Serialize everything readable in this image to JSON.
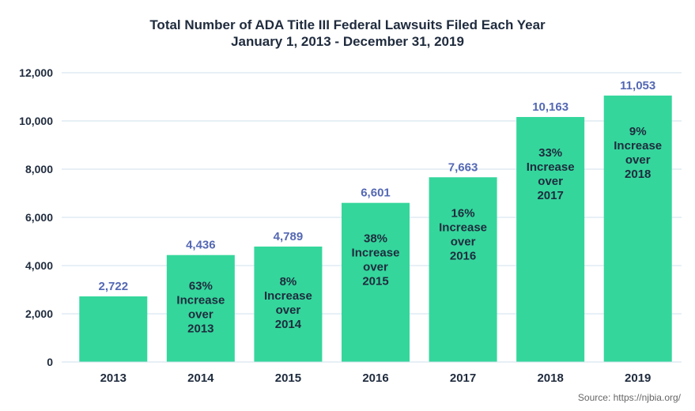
{
  "chart_data": {
    "type": "bar",
    "title_lines": [
      "Total Number of ADA Title III Federal Lawsuits Filed Each Year",
      "January 1, 2013 - December 31, 2019"
    ],
    "categories": [
      "2013",
      "2014",
      "2015",
      "2016",
      "2017",
      "2018",
      "2019"
    ],
    "values": [
      2722,
      4436,
      4789,
      6601,
      7663,
      10163,
      11053
    ],
    "value_labels": [
      "2,722",
      "4,436",
      "4,789",
      "6,601",
      "7,663",
      "10,163",
      "11,053"
    ],
    "bar_annotations": [
      [],
      [
        "63%",
        "Increase",
        "over",
        "2013"
      ],
      [
        "8%",
        "Increase",
        "over",
        "2014"
      ],
      [
        "38%",
        "Increase",
        "over",
        "2015"
      ],
      [
        "16%",
        "Increase",
        "over",
        "2016"
      ],
      [
        "33%",
        "Increase",
        "over",
        "2017"
      ],
      [
        "9%",
        "Increase",
        "over",
        "2018"
      ]
    ],
    "ylim": [
      0,
      12000
    ],
    "yticks": [
      0,
      2000,
      4000,
      6000,
      8000,
      10000,
      12000
    ],
    "ytick_labels": [
      "0",
      "2,000",
      "4,000",
      "6,000",
      "8,000",
      "10,000",
      "12,000"
    ],
    "grid": true,
    "colors": {
      "bar": "#34d69c",
      "value_label": "#5468b3",
      "annotation": "#1f2b3d",
      "grid": "#cfe2ec"
    },
    "source": "Source: https://njbia.org/"
  }
}
